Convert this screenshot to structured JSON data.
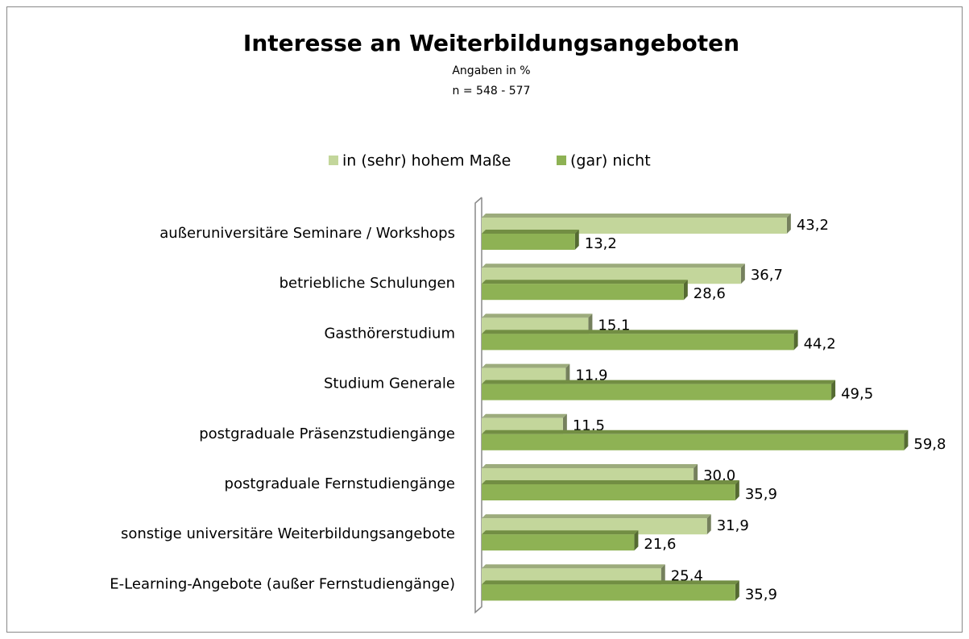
{
  "chart_data": {
    "type": "hbar",
    "title": "Interesse an Weiterbildungsangeboten",
    "subtitle": [
      "Angaben in %",
      "n = 548 -  577"
    ],
    "categories": [
      "außeruniversitäre Seminare / Workshops",
      "betriebliche Schulungen",
      "Gasthörerstudium",
      "Studium Generale",
      "postgraduale Präsenzstudiengänge",
      "postgraduale Fernstudiengänge",
      "sonstige universitäre Weiterbildungsangebote",
      "E-Learning-Angebote (außer Fernstudiengänge)"
    ],
    "series": [
      {
        "name": "in (sehr) hohem Maße",
        "color": "#c3d69b",
        "values": [
          43.2,
          36.7,
          15.1,
          11.9,
          11.5,
          30.0,
          31.9,
          25.4
        ],
        "value_labels": [
          "43,2",
          "36,7",
          "15,1",
          "11,9",
          "11,5",
          "30,0",
          "31,9",
          "25,4"
        ]
      },
      {
        "name": "(gar) nicht",
        "color": "#8eb254",
        "values": [
          13.2,
          28.6,
          44.2,
          49.5,
          59.8,
          35.9,
          21.6,
          35.9
        ],
        "value_labels": [
          "13,2",
          "28,6",
          "44,2",
          "49,5",
          "59,8",
          "35,9",
          "21,6",
          "35,9"
        ]
      }
    ],
    "xlim": [
      0,
      65
    ],
    "legend": "top"
  }
}
